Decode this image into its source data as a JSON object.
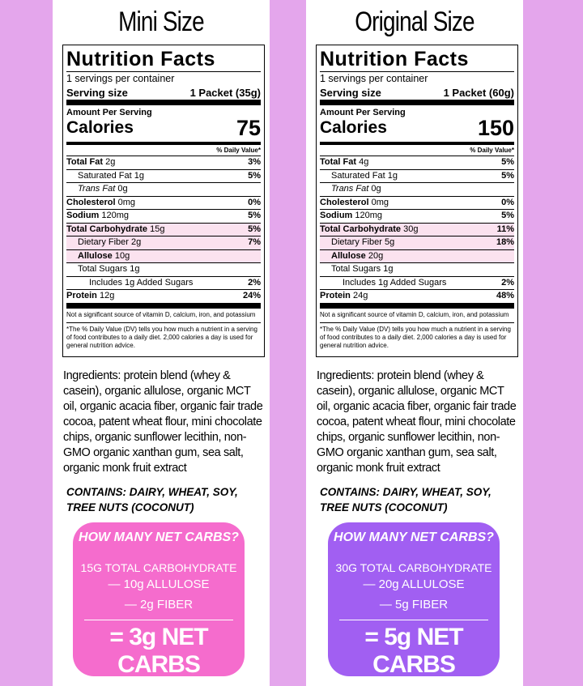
{
  "panels": [
    {
      "title": "Mini Size",
      "label": {
        "header": "Nutrition Facts",
        "servings": "1 servings per container",
        "serving_size_label": "Serving size",
        "serving_size": "1 Packet (35g)",
        "amount_per_serving": "Amount Per Serving",
        "calories_label": "Calories",
        "calories": "75",
        "dv_header": "% Daily Value*",
        "rows": [
          {
            "name": "Total Fat",
            "amount": "2g",
            "dv": "3%"
          },
          {
            "name": "Saturated Fat",
            "amount": "1g",
            "dv": "5%"
          },
          {
            "name": "Trans Fat",
            "amount": "0g"
          },
          {
            "name": "Cholesterol",
            "amount": "0mg",
            "dv": "0%"
          },
          {
            "name": "Sodium",
            "amount": "120mg",
            "dv": "5%"
          },
          {
            "name": "Total Carbohydrate",
            "amount": "15g",
            "dv": "5%"
          },
          {
            "name": "Dietary Fiber",
            "amount": "2g",
            "dv": "7%"
          },
          {
            "name": "Allulose",
            "amount": "10g"
          },
          {
            "name": "Total Sugars",
            "amount": "1g"
          },
          {
            "name": "Includes 1g Added Sugars",
            "dv": "2%"
          },
          {
            "name": "Protein",
            "amount": "12g",
            "dv": "24%"
          }
        ],
        "footnote_1": "Not a significant source of vitamin D, calcium, iron, and potassium",
        "footnote_2": "*The % Daily Value (DV) tells you how much a nutrient in a serving of food contributes to a daily diet. 2,000 calories a day is used for general nutrition advice."
      },
      "ingredients": "Ingredients: protein blend (whey & casein), organic allulose, organic MCT oil, organic acacia fiber, organic fair trade cocoa, patent wheat flour, mini chocolate chips, organic sunflower lecithin, non-GMO organic xanthan gum, sea salt, organic monk fruit extract",
      "contains": "CONTAINS: DAIRY, WHEAT, SOY, TREE NUTS (COCONUT)",
      "net_carbs": {
        "question": "HOW MANY NET CARBS?",
        "total": "15G TOTAL CARBOHYDRATE",
        "minus": [
          "— 10g ALLULOSE",
          "— 2g FIBER"
        ],
        "result": "= 3g NET CARBS"
      }
    },
    {
      "title": "Original Size",
      "label": {
        "header": "Nutrition Facts",
        "servings": "1 servings per container",
        "serving_size_label": "Serving size",
        "serving_size": "1 Packet (60g)",
        "amount_per_serving": "Amount Per Serving",
        "calories_label": "Calories",
        "calories": "150",
        "dv_header": "% Daily Value*",
        "rows": [
          {
            "name": "Total Fat",
            "amount": "4g",
            "dv": "5%"
          },
          {
            "name": "Saturated Fat",
            "amount": "1g",
            "dv": "5%"
          },
          {
            "name": "Trans Fat",
            "amount": "0g"
          },
          {
            "name": "Cholesterol",
            "amount": "0mg",
            "dv": "0%"
          },
          {
            "name": "Sodium",
            "amount": "120mg",
            "dv": "5%"
          },
          {
            "name": "Total Carbohydrate",
            "amount": "30g",
            "dv": "11%"
          },
          {
            "name": "Dietary Fiber",
            "amount": "5g",
            "dv": "18%"
          },
          {
            "name": "Allulose",
            "amount": "20g"
          },
          {
            "name": "Total Sugars",
            "amount": "1g"
          },
          {
            "name": "Includes 1g Added Sugars",
            "dv": "2%"
          },
          {
            "name": "Protein",
            "amount": "24g",
            "dv": "48%"
          }
        ],
        "footnote_1": "Not a significant source of vitamin D, calcium, iron, and potassium",
        "footnote_2": "*The % Daily Value (DV) tells you how much a nutrient in a serving of food contributes to a daily diet. 2,000 calories a day is used for general nutrition advice."
      },
      "ingredients": "Ingredients: protein blend (whey & casein), organic allulose, organic MCT oil, organic acacia fiber, organic fair trade cocoa, patent wheat flour, mini chocolate chips, organic sunflower lecithin, non-GMO organic xanthan gum, sea salt, organic monk fruit extract",
      "contains": "CONTAINS: DAIRY, WHEAT, SOY, TREE NUTS (COCONUT)",
      "net_carbs": {
        "question": "HOW MANY NET CARBS?",
        "total": "30G TOTAL CARBOHYDRATE",
        "minus": [
          "— 20g ALLULOSE",
          "— 5g FIBER"
        ],
        "result": "= 5g NET CARBS"
      }
    }
  ]
}
